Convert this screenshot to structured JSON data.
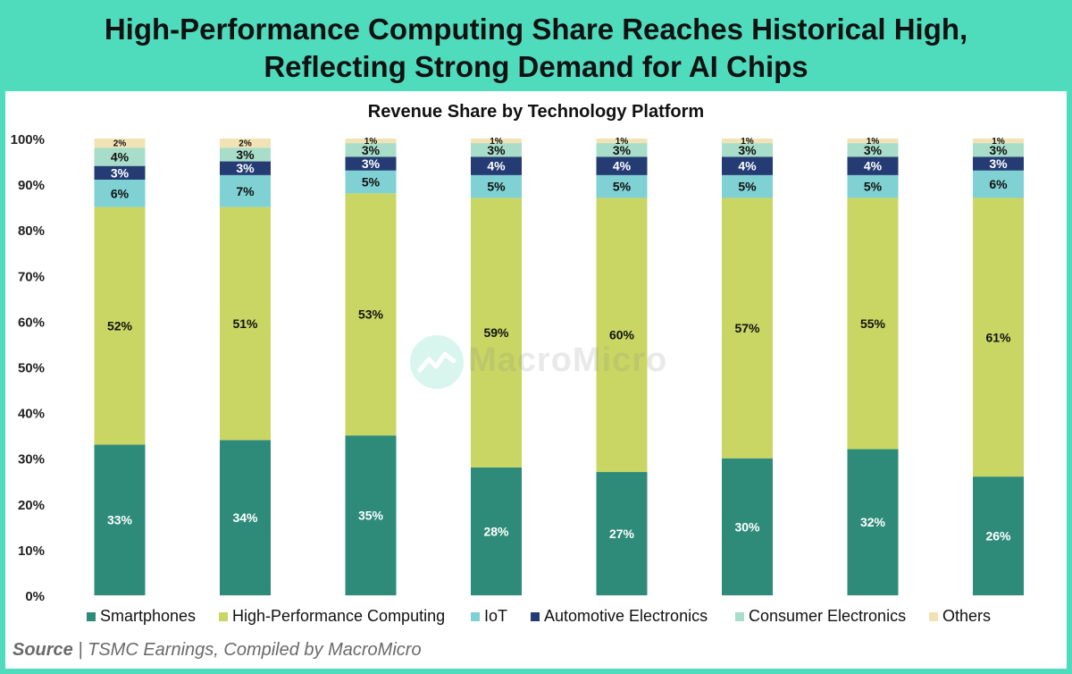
{
  "header": {
    "title_line1": "High-Performance Computing Share Reaches Historical High,",
    "title_line2": "Reflecting Strong Demand for AI Chips"
  },
  "colors": {
    "banner": "#4fdcbd",
    "Smartphones": "#2e8b7a",
    "High-Performance Computing": "#c9d663",
    "IoT": "#7fd1d3",
    "Automotive Electronics": "#243c73",
    "Consumer Electronics": "#a8ddc9",
    "Others": "#f1e3b3"
  },
  "chart_data": {
    "type": "bar",
    "stacked": true,
    "title": "Revenue Share by Technology Platform",
    "xlabel": "",
    "ylabel": "",
    "ylim": [
      0,
      100
    ],
    "yticks": [
      "0%",
      "10%",
      "20%",
      "30%",
      "40%",
      "50%",
      "60%",
      "70%",
      "80%",
      "90%",
      "100%"
    ],
    "categories": [
      "",
      "",
      "",
      "",
      "",
      "",
      "",
      ""
    ],
    "series": [
      {
        "name": "Smartphones",
        "values": [
          33,
          34,
          35,
          28,
          27,
          30,
          32,
          26
        ]
      },
      {
        "name": "High-Performance Computing",
        "values": [
          52,
          51,
          53,
          59,
          60,
          57,
          55,
          61
        ]
      },
      {
        "name": "IoT",
        "values": [
          6,
          7,
          5,
          5,
          5,
          5,
          5,
          6
        ]
      },
      {
        "name": "Automotive Electronics",
        "values": [
          3,
          3,
          3,
          4,
          4,
          4,
          4,
          3
        ]
      },
      {
        "name": "Consumer Electronics",
        "values": [
          4,
          3,
          3,
          3,
          3,
          3,
          3,
          3
        ]
      },
      {
        "name": "Others",
        "values": [
          2,
          2,
          1,
          1,
          1,
          1,
          1,
          1
        ]
      }
    ],
    "legend_position": "bottom"
  },
  "footer": {
    "source_label": "Source",
    "source_sep": " | ",
    "source_text": "TSMC Earnings, Compiled by MacroMicro"
  },
  "watermark": {
    "text": "MacroMicro"
  }
}
